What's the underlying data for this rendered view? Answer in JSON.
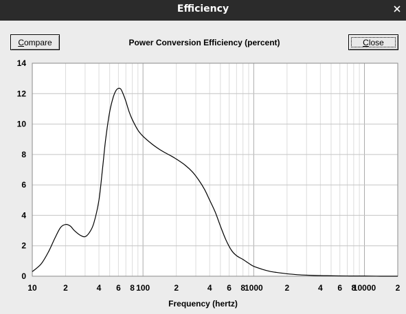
{
  "window": {
    "title": "Efficiency"
  },
  "toolbar": {
    "compare_label": "Compare",
    "compare_accel": "C",
    "compare_rest": "ompare",
    "close_label": "Close",
    "close_accel": "C",
    "close_rest": "lose"
  },
  "chart_data": {
    "type": "line",
    "title": "Power Conversion Efficiency (percent)",
    "xlabel": "Frequency (hertz)",
    "ylabel": "",
    "x_scale": "log",
    "xlim": [
      10,
      20000
    ],
    "ylim": [
      0,
      14
    ],
    "grid": true,
    "y_ticks": [
      "0",
      "2",
      "4",
      "6",
      "8",
      "10",
      "12",
      "14"
    ],
    "x_ticks": [
      {
        "value": 10,
        "label": "10"
      },
      {
        "value": 20,
        "label": "2"
      },
      {
        "value": 40,
        "label": "4"
      },
      {
        "value": 60,
        "label": "6"
      },
      {
        "value": 80,
        "label": "8"
      },
      {
        "value": 100,
        "label": "100"
      },
      {
        "value": 200,
        "label": "2"
      },
      {
        "value": 400,
        "label": "4"
      },
      {
        "value": 600,
        "label": "6"
      },
      {
        "value": 800,
        "label": "8"
      },
      {
        "value": 1000,
        "label": "1000"
      },
      {
        "value": 2000,
        "label": "2"
      },
      {
        "value": 4000,
        "label": "4"
      },
      {
        "value": 6000,
        "label": "6"
      },
      {
        "value": 8000,
        "label": "8"
      },
      {
        "value": 10000,
        "label": "10000"
      },
      {
        "value": 20000,
        "label": "2"
      }
    ],
    "series": [
      {
        "color": "#000000",
        "x": [
          10,
          12,
          14,
          16,
          18,
          20,
          22,
          24,
          27,
          30,
          33,
          36,
          40,
          43,
          46,
          50,
          54,
          57,
          60,
          63,
          66,
          70,
          75,
          80,
          90,
          100,
          120,
          140,
          160,
          180,
          200,
          240,
          280,
          320,
          360,
          400,
          450,
          500,
          560,
          630,
          700,
          800,
          900,
          1000,
          1200,
          1400,
          1600,
          2000,
          2500,
          3000,
          4000,
          5000,
          6000,
          8000,
          10000,
          14000,
          20000
        ],
        "y": [
          0.3,
          0.8,
          1.6,
          2.5,
          3.2,
          3.4,
          3.3,
          3.0,
          2.7,
          2.6,
          2.9,
          3.5,
          5.0,
          7.0,
          9.0,
          10.8,
          11.8,
          12.2,
          12.35,
          12.3,
          12.0,
          11.5,
          10.8,
          10.3,
          9.6,
          9.2,
          8.7,
          8.35,
          8.1,
          7.9,
          7.7,
          7.3,
          6.85,
          6.3,
          5.7,
          5.0,
          4.2,
          3.3,
          2.4,
          1.7,
          1.35,
          1.1,
          0.85,
          0.65,
          0.45,
          0.32,
          0.25,
          0.16,
          0.1,
          0.07,
          0.04,
          0.03,
          0.02,
          0.01,
          0.01,
          0.0,
          0.0
        ]
      }
    ]
  }
}
